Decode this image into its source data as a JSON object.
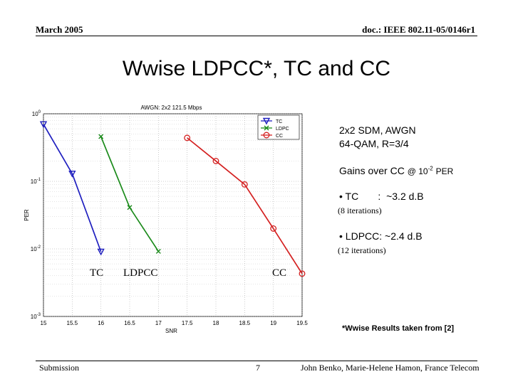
{
  "header": {
    "date": "March 2005",
    "doc": "doc.: IEEE 802.11-05/0146r1"
  },
  "slide": {
    "title": "Wwise LDPCC*, TC and CC"
  },
  "notes": {
    "line1": "2x2 SDM, AWGN",
    "line2": "64-QAM, R=3/4",
    "gains_prefix": "Gains over CC",
    "gains_suffix": "@ 10",
    "gains_exp": "-2",
    "gains_unit": "PER",
    "tc_gain": "• TC       :  ~3.2 d.B",
    "tc_iter": "(8 iterations)",
    "ldpcc_gain": "• LDPCC:  ~2.4 d.B",
    "ldpcc_iter": "(12 iterations)",
    "footnote": "*Wwise Results taken from [2]"
  },
  "curve_labels": {
    "tc": "TC",
    "ldpcc": "LDPCC",
    "cc": "CC"
  },
  "footer": {
    "left": "Submission",
    "page": "7",
    "authors": "John Benko, Marie-Helene Hamon, France Telecom"
  },
  "chart_data": {
    "type": "line",
    "title": "AWGN: 2x2 121.5 Mbps",
    "xlabel": "SNR",
    "ylabel": "PER",
    "xlim": [
      15,
      19.5
    ],
    "ylim": [
      0.001,
      1
    ],
    "yscale": "log",
    "xticks": [
      "15",
      "15.5",
      "16",
      "16.5",
      "17",
      "17.5",
      "18",
      "18.5",
      "19",
      "19.5"
    ],
    "yticks": [
      {
        "base": "10",
        "exp": "0",
        "value": 1
      },
      {
        "base": "10",
        "exp": "-1",
        "value": 0.1
      },
      {
        "base": "10",
        "exp": "-2",
        "value": 0.01
      },
      {
        "base": "10",
        "exp": "-3",
        "value": 0.001
      }
    ],
    "grid": true,
    "legend_position": "top-right",
    "series": [
      {
        "name": "TC",
        "color": "#1f1fbf",
        "marker": "triangle-down",
        "x": [
          15,
          15.5,
          16
        ],
        "y": [
          0.7,
          0.13,
          0.0091
        ]
      },
      {
        "name": "LDPC",
        "color": "#1a8a1a",
        "marker": "x",
        "x": [
          16,
          16.5,
          17
        ],
        "y": [
          0.46,
          0.041,
          0.0092
        ]
      },
      {
        "name": "CC",
        "color": "#d42020",
        "marker": "circle",
        "x": [
          17.5,
          18,
          18.5,
          19,
          19.5
        ],
        "y": [
          0.44,
          0.2,
          0.09,
          0.02,
          0.0043
        ]
      }
    ]
  }
}
